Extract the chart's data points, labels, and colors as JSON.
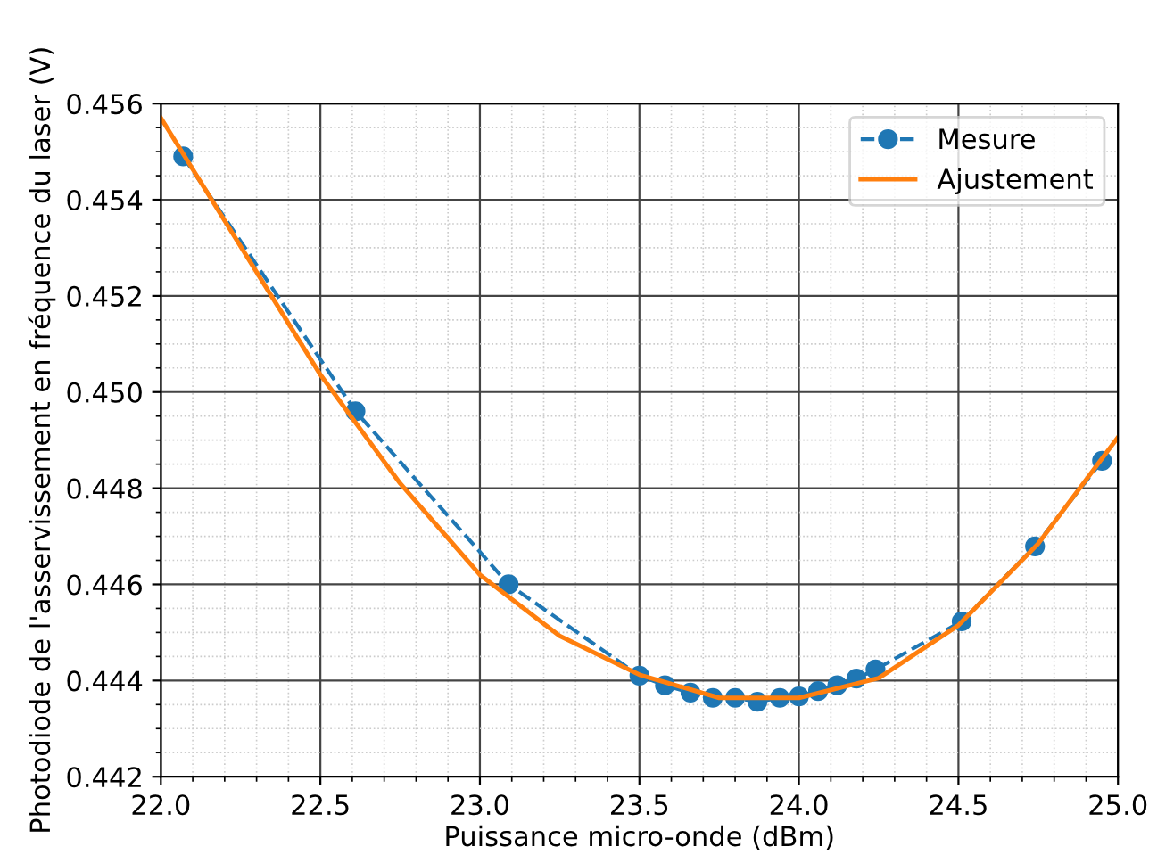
{
  "chart_data": {
    "type": "line",
    "xlabel": "Puissance micro-onde (dBm)",
    "ylabel": "Photodiode de l'asservissement en fréquence du laser (V)",
    "xlim": [
      22.0,
      25.0
    ],
    "xticks": [
      {
        "value": 22.0,
        "label": "22.0"
      },
      {
        "value": 22.5,
        "label": "22.5"
      },
      {
        "value": 23.0,
        "label": "23.0"
      },
      {
        "value": 23.5,
        "label": "23.5"
      },
      {
        "value": 24.0,
        "label": "24.0"
      },
      {
        "value": 24.5,
        "label": "24.5"
      },
      {
        "value": 25.0,
        "label": "25.0"
      }
    ],
    "ylim": [
      0.442,
      0.456
    ],
    "yticks": [
      {
        "value": 0.442,
        "label": "0.442"
      },
      {
        "value": 0.444,
        "label": "0.444"
      },
      {
        "value": 0.446,
        "label": "0.446"
      },
      {
        "value": 0.448,
        "label": "0.448"
      },
      {
        "value": 0.45,
        "label": "0.450"
      },
      {
        "value": 0.452,
        "label": "0.452"
      },
      {
        "value": 0.454,
        "label": "0.454"
      },
      {
        "value": 0.456,
        "label": "0.456"
      }
    ],
    "grid": true,
    "legend": "top right",
    "series": [
      {
        "name": "Mesure",
        "color": "#1f77b4",
        "marker": "circle",
        "line_style": "dashed",
        "x": [
          22.07,
          22.61,
          23.09,
          23.5,
          23.58,
          23.66,
          23.73,
          23.8,
          23.87,
          23.94,
          24.0,
          24.06,
          24.12,
          24.18,
          24.24,
          24.51,
          24.74,
          24.95
        ],
        "values": [
          0.4549,
          0.4496,
          0.446,
          0.4441,
          0.4439,
          0.44375,
          0.44364,
          0.44364,
          0.44356,
          0.44364,
          0.44367,
          0.44378,
          0.4439,
          0.44404,
          0.44423,
          0.44523,
          0.44679,
          0.44857
        ]
      },
      {
        "name": "Ajustement",
        "color": "#ff7f0e",
        "marker": "none",
        "line_style": "solid",
        "x": [
          22.0,
          22.25,
          22.5,
          22.75,
          23.0,
          23.25,
          23.5,
          23.75,
          24.0,
          24.25,
          24.5,
          24.75,
          25.0
        ],
        "values": [
          0.4557,
          0.45303,
          0.45036,
          0.4481,
          0.4462,
          0.44493,
          0.44412,
          0.44364,
          0.44364,
          0.44405,
          0.44515,
          0.44685,
          0.44906
        ]
      }
    ]
  }
}
